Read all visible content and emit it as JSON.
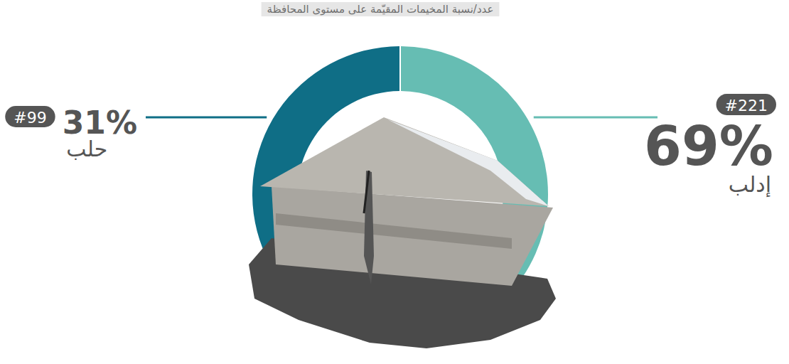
{
  "chart_data": {
    "type": "donut",
    "title": "عدد/نسبة المخيمات المقيّمة على مستوى المحافظة",
    "categories": [
      "إدلب",
      "حلب"
    ],
    "values": [
      69,
      31
    ],
    "value_labels": [
      "69%",
      "31%"
    ],
    "counts": [
      221,
      99
    ],
    "count_labels": [
      "#221",
      "#99"
    ],
    "colors": [
      "#66bdb3",
      "#0f6e86"
    ],
    "data_labels": true
  }
}
